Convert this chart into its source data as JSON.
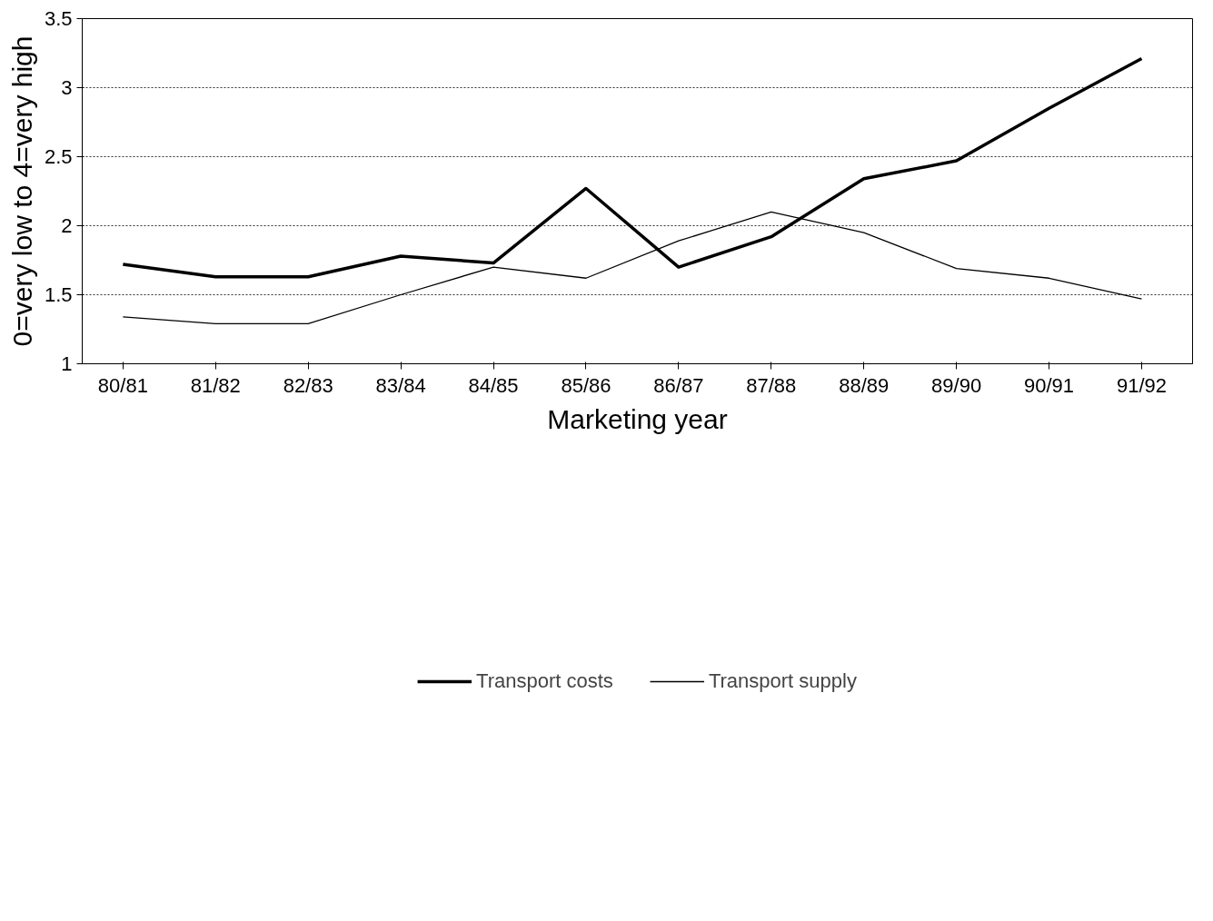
{
  "chart_data": {
    "type": "line",
    "xlabel": "Marketing year",
    "ylabel": "0=very low to 4=very high",
    "categories": [
      "80/81",
      "81/82",
      "82/83",
      "83/84",
      "84/85",
      "85/86",
      "86/87",
      "87/88",
      "88/89",
      "89/90",
      "90/91",
      "91/92"
    ],
    "series": [
      {
        "name": "Transport costs",
        "color": "#000000",
        "values": [
          1.72,
          1.63,
          1.63,
          1.78,
          1.73,
          2.27,
          1.7,
          1.92,
          2.34,
          2.47,
          2.85,
          3.21
        ]
      },
      {
        "name": "Transport supply",
        "color": "#000000",
        "values": [
          1.34,
          1.29,
          1.29,
          1.5,
          1.7,
          1.62,
          1.89,
          2.1,
          1.95,
          1.69,
          1.62,
          1.47
        ]
      }
    ],
    "ylim": [
      1,
      3.5
    ],
    "yticks": [
      1,
      1.5,
      2,
      2.5,
      3,
      3.5
    ],
    "grid": "y",
    "legend": "bottom",
    "line_style": "solid",
    "marker": "none"
  }
}
